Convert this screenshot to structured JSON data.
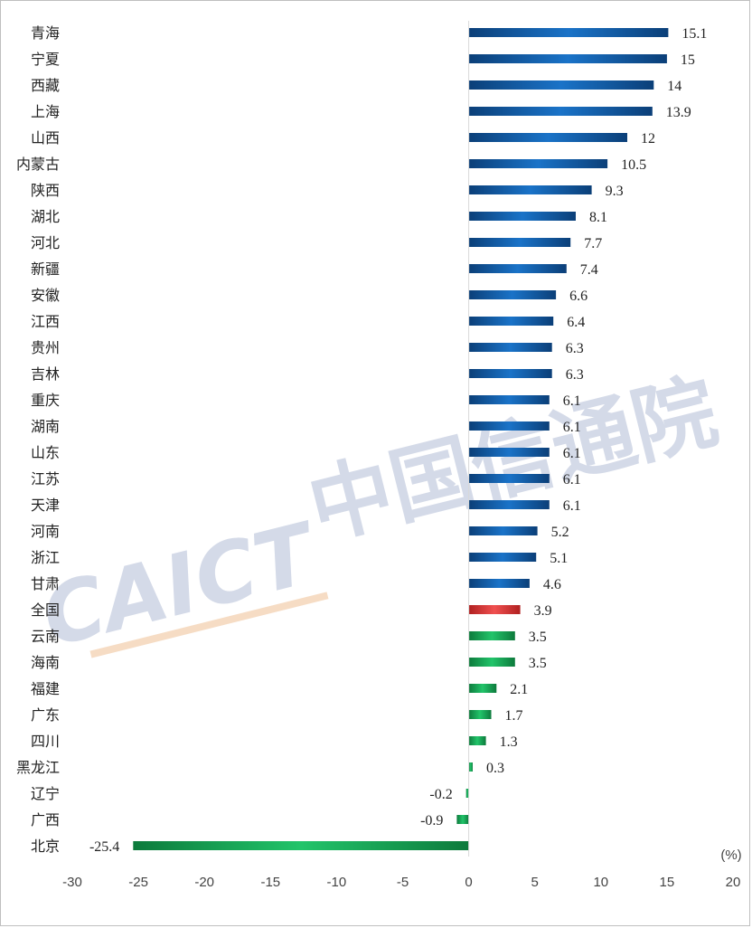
{
  "chart_data": {
    "type": "bar",
    "orientation": "horizontal",
    "categories": [
      "青海",
      "宁夏",
      "西藏",
      "上海",
      "山西",
      "内蒙古",
      "陕西",
      "湖北",
      "河北",
      "新疆",
      "安徽",
      "江西",
      "贵州",
      "吉林",
      "重庆",
      "湖南",
      "山东",
      "江苏",
      "天津",
      "河南",
      "浙江",
      "甘肃",
      "全国",
      "云南",
      "海南",
      "福建",
      "广东",
      "四川",
      "黑龙江",
      "辽宁",
      "广西",
      "北京"
    ],
    "values": [
      15.1,
      15,
      14,
      13.9,
      12,
      10.5,
      9.3,
      8.1,
      7.7,
      7.4,
      6.6,
      6.4,
      6.3,
      6.3,
      6.1,
      6.1,
      6.1,
      6.1,
      6.1,
      5.2,
      5.1,
      4.6,
      3.9,
      3.5,
      3.5,
      2.1,
      1.7,
      1.3,
      0.3,
      -0.2,
      -0.9,
      -25.4
    ],
    "value_labels": [
      "15.1",
      "15",
      "14",
      "13.9",
      "12",
      "10.5",
      "9.3",
      "8.1",
      "7.7",
      "7.4",
      "6.6",
      "6.4",
      "6.3",
      "6.3",
      "6.1",
      "6.1",
      "6.1",
      "6.1",
      "6.1",
      "5.2",
      "5.1",
      "4.6",
      "3.9",
      "3.5",
      "3.5",
      "2.1",
      "1.7",
      "1.3",
      "0.3",
      "-0.2",
      "-0.9",
      "-25.4"
    ],
    "xlim": [
      -30,
      20
    ],
    "xticks": [
      -30,
      -25,
      -20,
      -15,
      -10,
      -5,
      0,
      5,
      10,
      15,
      20
    ],
    "unit_label": "(%)",
    "grid": false,
    "colors": {
      "blue": "#1565b0",
      "red": "#e03b3b",
      "green": "#19b35a"
    }
  },
  "watermark": {
    "latin": "CAICT",
    "cjk": "中国信通院"
  }
}
